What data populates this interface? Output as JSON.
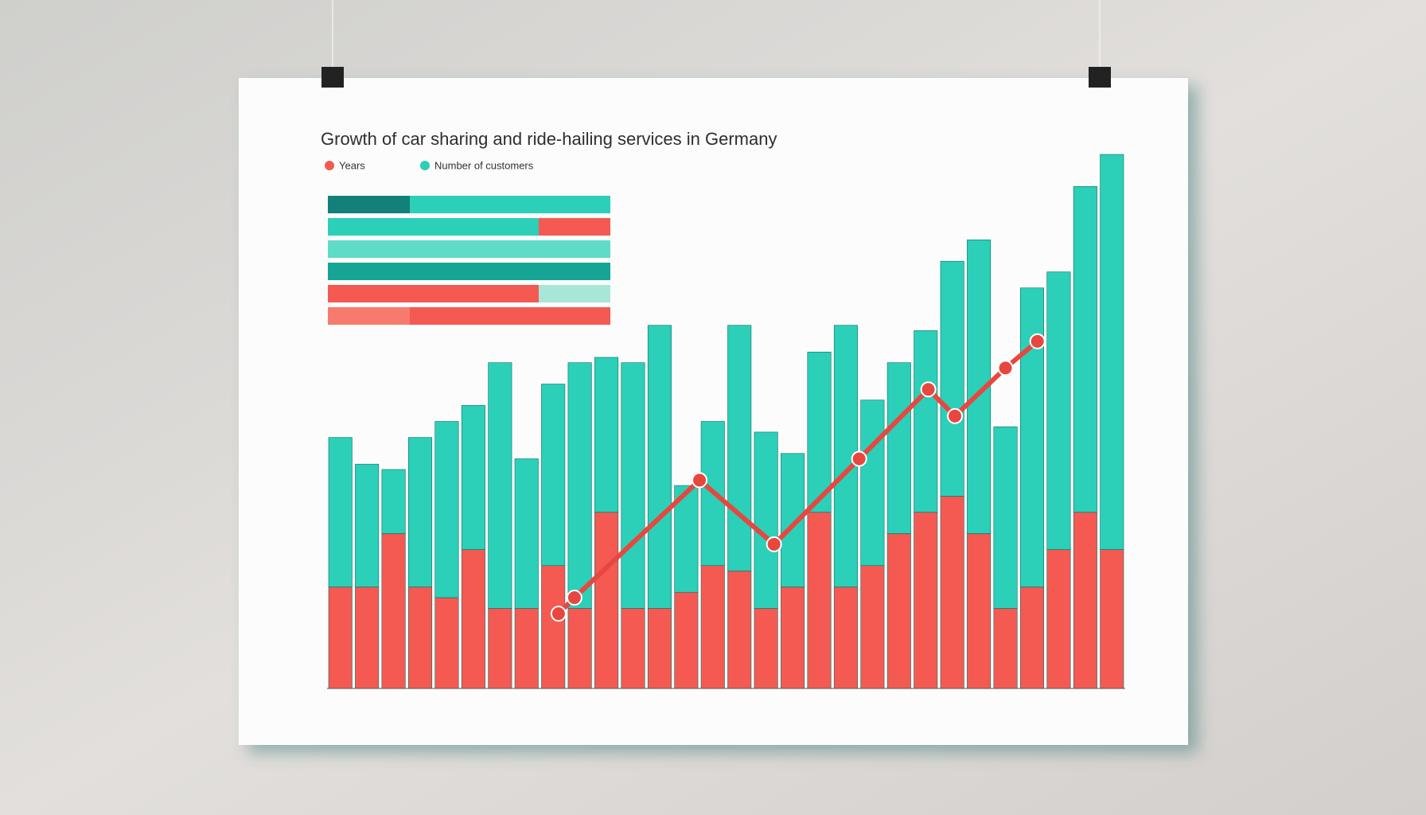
{
  "chart_data": {
    "type": "bar",
    "stacked": true,
    "title": "Growth of car sharing and ride-hailing services in Germany",
    "series": [
      {
        "name": "Years",
        "color": "#f45a52",
        "values": [
          19,
          19,
          29,
          19,
          17,
          26,
          15,
          15,
          23,
          15,
          33,
          15,
          15,
          18,
          23,
          22,
          15,
          19,
          33,
          19,
          23,
          29,
          33,
          36,
          29,
          15,
          19,
          26,
          33,
          26
        ]
      },
      {
        "name": "Number of customers",
        "color": "#2ccfb8",
        "values": [
          28,
          23,
          12,
          28,
          33,
          27,
          46,
          28,
          34,
          46,
          29,
          46,
          53,
          20,
          27,
          46,
          33,
          25,
          30,
          49,
          31,
          32,
          34,
          44,
          55,
          34,
          56,
          52,
          61,
          74
        ]
      }
    ],
    "line": {
      "color": "#e8473f",
      "x": [
        8.7,
        9.3,
        14,
        16.8,
        20,
        22.6,
        23.6,
        25.5,
        26.7
      ],
      "values": [
        14,
        17,
        39,
        27,
        43,
        56,
        51,
        60,
        65
      ]
    },
    "xlim": [
      0,
      30
    ],
    "ylim": [
      0,
      100
    ]
  }
}
